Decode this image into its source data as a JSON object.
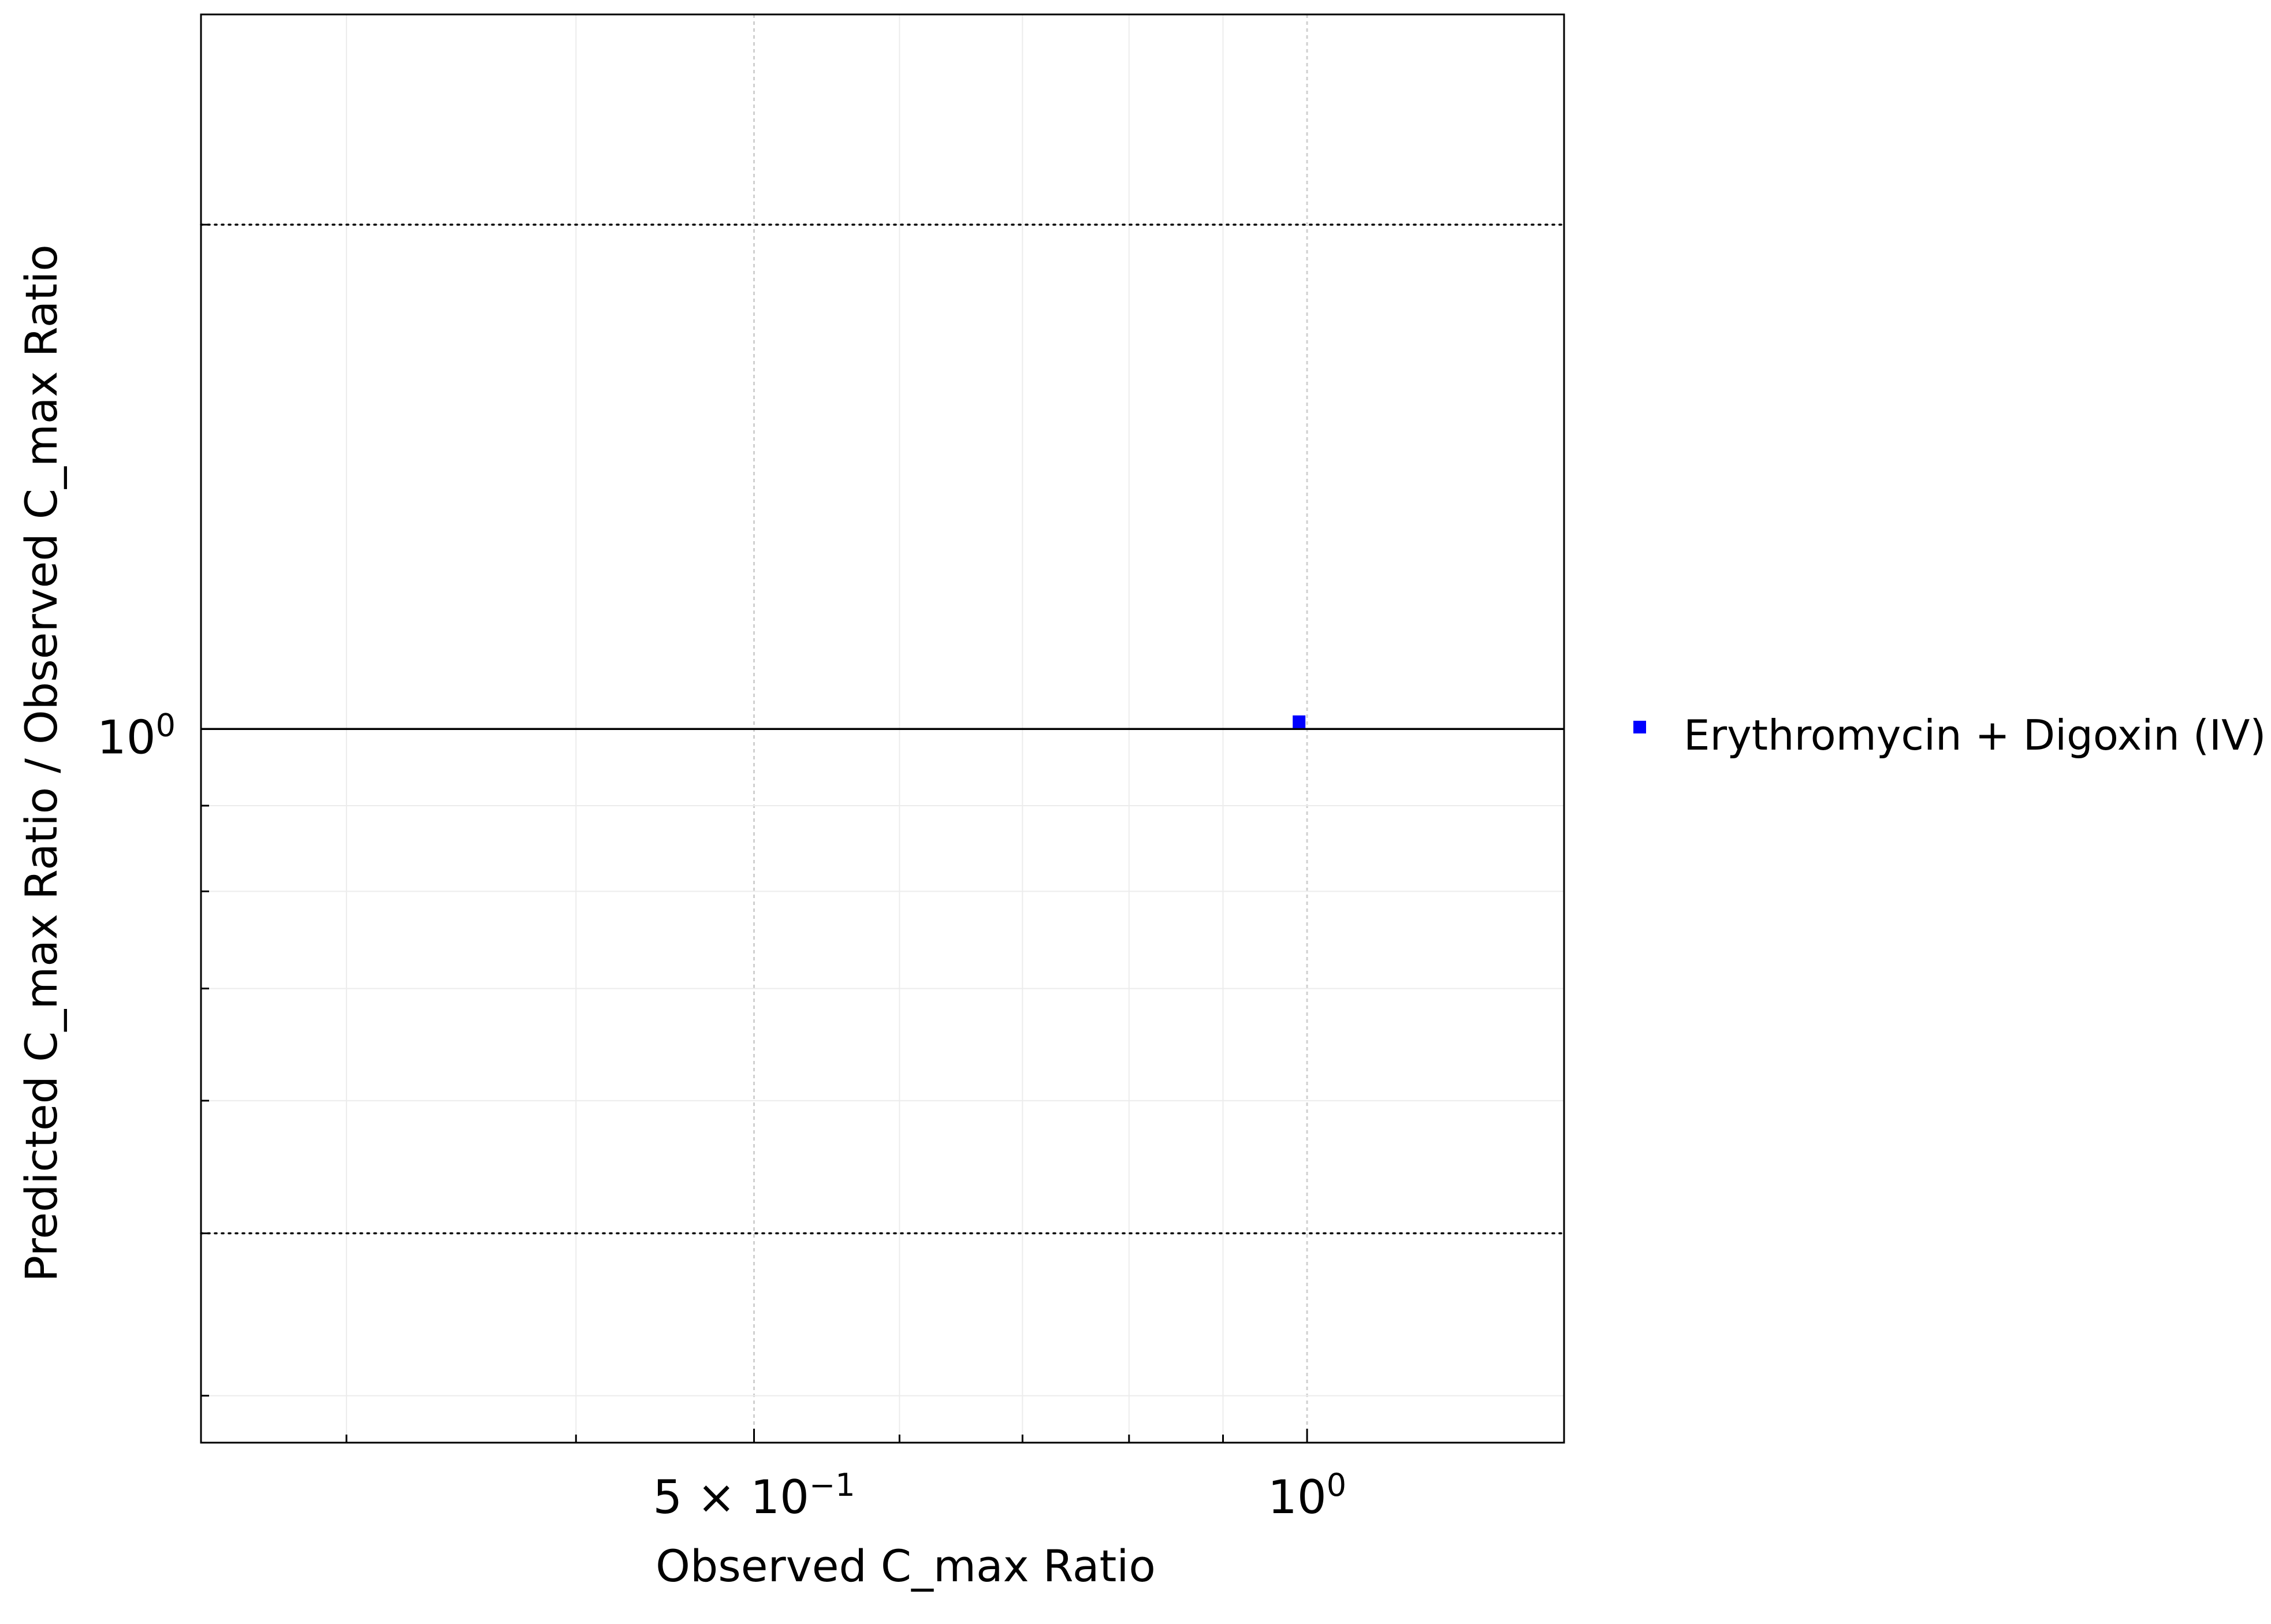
{
  "chart_data": {
    "type": "scatter",
    "title": "",
    "xlabel": "Observed C_max Ratio",
    "ylabel": "Predicted C_max Ratio / Observed C_max Ratio",
    "x_scale": "log",
    "y_scale": "log",
    "xlim": [
      0.25,
      1.38
    ],
    "ylim": [
      0.375,
      2.67
    ],
    "x_ticks": [
      {
        "value": 0.5,
        "mantissa": "5",
        "times": "×",
        "base": "10",
        "exp": "−1"
      },
      {
        "value": 1.0,
        "mantissa": "",
        "times": "",
        "base": "10",
        "exp": "0"
      }
    ],
    "y_ticks": [
      {
        "value": 1.0,
        "base": "10",
        "exp": "0"
      }
    ],
    "grid": true,
    "legend_position": "right",
    "reference_lines": {
      "identity": 1.0,
      "fold_limits": [
        0.5,
        2.0
      ],
      "guest_limit_delta": 1.0
    },
    "series": [
      {
        "name": "Erythromycin + Digoxin (IV)",
        "color": "#0000ff",
        "marker": "square",
        "points": [
          {
            "x": 0.99,
            "y": 1.01
          }
        ]
      }
    ]
  }
}
